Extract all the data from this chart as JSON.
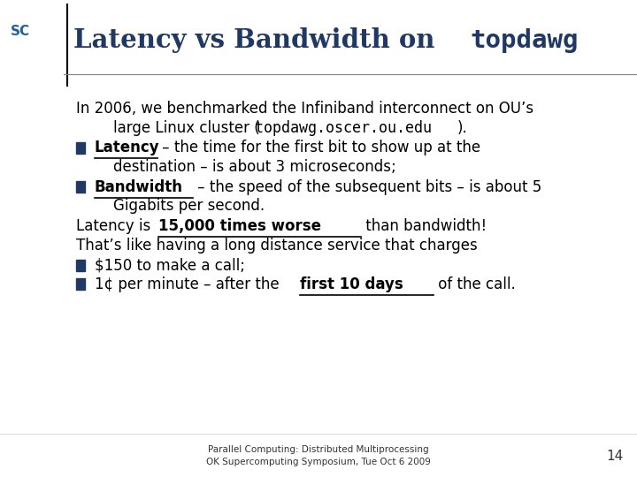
{
  "bg_color": "#ffffff",
  "title_color": "#1F3864",
  "bullet_color": "#1F3864",
  "text_color": "#000000",
  "footer_text1": "Parallel Computing: Distributed Multiprocessing",
  "footer_text2": "OK Supercomputing Symposium, Tue Oct 6 2009",
  "page_number": "14",
  "header_line_color": "#808080",
  "sidebar_line_color": "#000000"
}
